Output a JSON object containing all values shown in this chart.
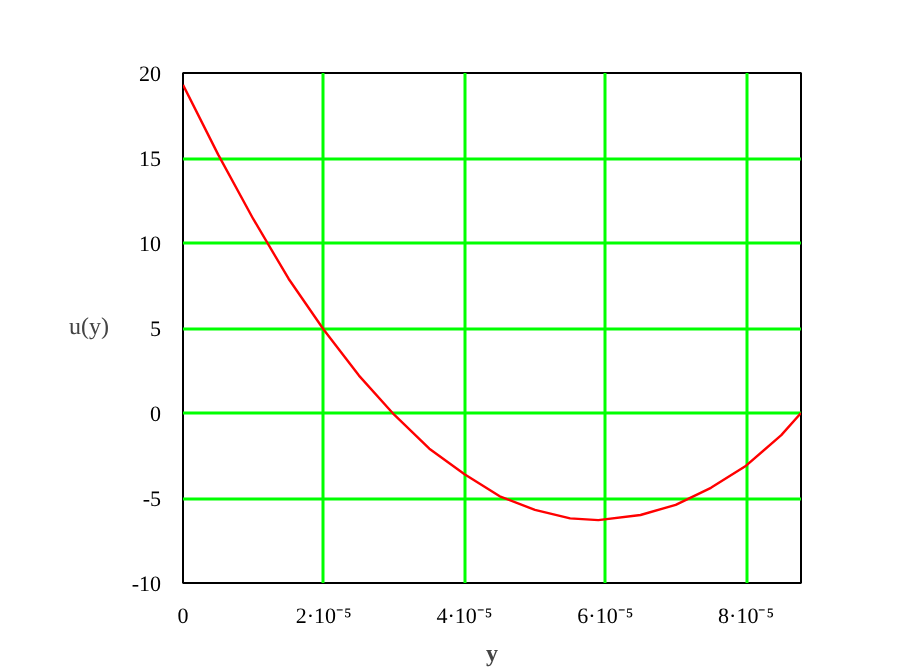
{
  "chart_data": {
    "type": "line",
    "xlabel": "y",
    "x": [
      0,
      5e-06,
      1e-05,
      1.5e-05,
      2e-05,
      2.5e-05,
      3e-05,
      3.5e-05,
      4e-05,
      4.5e-05,
      5e-05,
      5.5e-05,
      5.9e-05,
      6.5e-05,
      7e-05,
      7.5e-05,
      8e-05,
      8.5e-05,
      8.78e-05
    ],
    "series": [
      {
        "name": "u(y)",
        "color": "#ff0000",
        "values": [
          19.3,
          15.2,
          11.4,
          7.9,
          4.9,
          2.2,
          -0.1,
          -2.1,
          -3.6,
          -4.9,
          -5.7,
          -6.2,
          -6.3,
          -6.0,
          -5.4,
          -4.4,
          -3.1,
          -1.3,
          0
        ]
      }
    ],
    "xlim": [
      0,
      8.78e-05
    ],
    "xticks": [
      0,
      {
        "value": 2e-05,
        "label": "2·10⁻⁵"
      },
      {
        "value": 4e-05,
        "label": "4·10⁻⁵"
      },
      {
        "value": 6e-05,
        "label": "6·10⁻⁵"
      },
      {
        "value": 8e-05,
        "label": "8·10⁻⁵"
      }
    ],
    "ylim": [
      -10,
      20
    ],
    "yticks": [
      -10,
      -5,
      0,
      5,
      10,
      15,
      20
    ],
    "grid": true,
    "legend": "left",
    "marker": "none",
    "line_style": "solid"
  }
}
